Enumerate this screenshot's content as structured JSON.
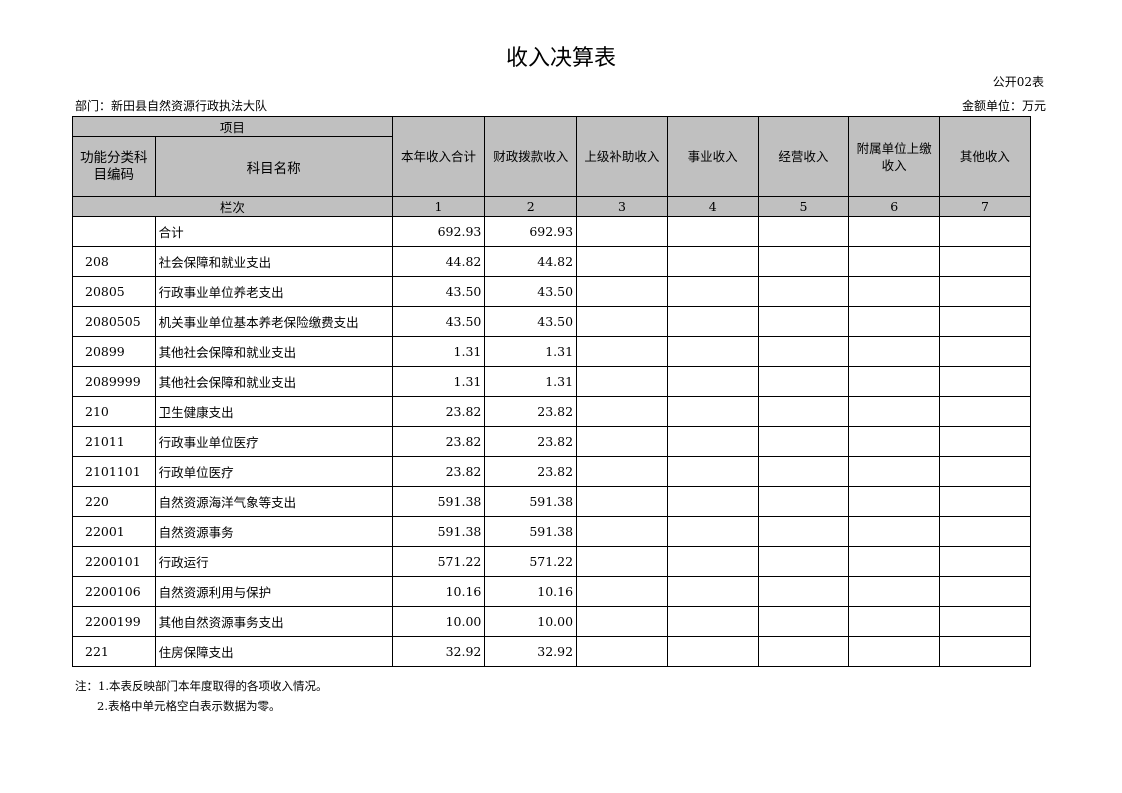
{
  "title": "收入决算表",
  "form_no": "公开02表",
  "department": "部门：新田县自然资源行政执法大队",
  "unit": "金额单位：万元",
  "header": {
    "item": "项目",
    "code": "功能分类科目编码",
    "name": "科目名称",
    "columns": [
      "本年收入合计",
      "财政拨款收入",
      "上级补助收入",
      "事业收入",
      "经营收入",
      "附属单位上缴收入",
      "其他收入"
    ],
    "row_label": "栏次",
    "col_numbers": [
      "1",
      "2",
      "3",
      "4",
      "5",
      "6",
      "7"
    ]
  },
  "rows": [
    {
      "code": "",
      "name": "合计",
      "total": "692.93",
      "fiscal": "692.93"
    },
    {
      "code": "208",
      "name": "社会保障和就业支出",
      "total": "44.82",
      "fiscal": "44.82"
    },
    {
      "code": "20805",
      "name": "行政事业单位养老支出",
      "total": "43.50",
      "fiscal": "43.50"
    },
    {
      "code": "2080505",
      "name": "机关事业单位基本养老保险缴费支出",
      "total": "43.50",
      "fiscal": "43.50"
    },
    {
      "code": "20899",
      "name": "其他社会保障和就业支出",
      "total": "1.31",
      "fiscal": "1.31"
    },
    {
      "code": "2089999",
      "name": "其他社会保障和就业支出",
      "total": "1.31",
      "fiscal": "1.31"
    },
    {
      "code": "210",
      "name": "卫生健康支出",
      "total": "23.82",
      "fiscal": "23.82"
    },
    {
      "code": "21011",
      "name": "行政事业单位医疗",
      "total": "23.82",
      "fiscal": "23.82"
    },
    {
      "code": "2101101",
      "name": "行政单位医疗",
      "total": "23.82",
      "fiscal": "23.82"
    },
    {
      "code": "220",
      "name": "自然资源海洋气象等支出",
      "total": "591.38",
      "fiscal": "591.38"
    },
    {
      "code": "22001",
      "name": "自然资源事务",
      "total": "591.38",
      "fiscal": "591.38"
    },
    {
      "code": "2200101",
      "name": "行政运行",
      "total": "571.22",
      "fiscal": "571.22"
    },
    {
      "code": "2200106",
      "name": "自然资源利用与保护",
      "total": "10.16",
      "fiscal": "10.16"
    },
    {
      "code": "2200199",
      "name": "其他自然资源事务支出",
      "total": "10.00",
      "fiscal": "10.00"
    },
    {
      "code": "221",
      "name": "住房保障支出",
      "total": "32.92",
      "fiscal": "32.92"
    }
  ],
  "notes": [
    "注：1.本表反映部门本年度取得的各项收入情况。",
    "2.表格中单元格空白表示数据为零。"
  ]
}
